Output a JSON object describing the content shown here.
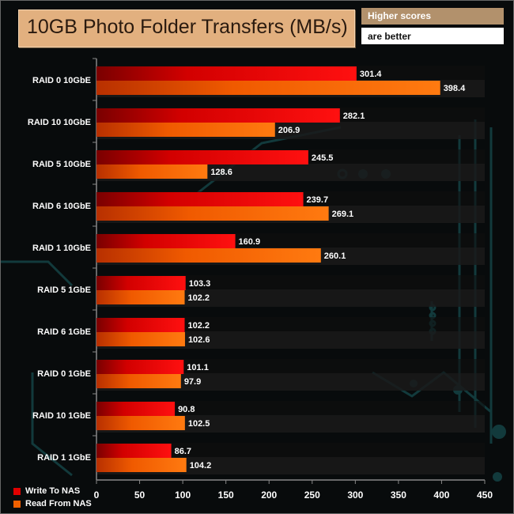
{
  "badge": {
    "line1": "Higher scores",
    "line2": "are better"
  },
  "colors": {
    "write": "#e00000",
    "read": "#f06000",
    "title_bg": "#e2b07f"
  },
  "chart_data": {
    "type": "bar",
    "orientation": "horizontal",
    "title": "10GB Photo Folder Transfers (MB/s)",
    "categories": [
      "RAID 0 10GbE",
      "RAID 10 10GbE",
      "RAID 5 10GbE",
      "RAID 6 10GbE",
      "RAID 1 10GbE",
      "RAID 5 1GbE",
      "RAID 6 1GbE",
      "RAID 0 1GbE",
      "RAID 10 1GbE",
      "RAID 1 1GbE"
    ],
    "series": [
      {
        "name": "Write To NAS",
        "values": [
          301.4,
          282.1,
          245.5,
          239.7,
          160.9,
          103.3,
          102.2,
          101.1,
          90.8,
          86.7
        ]
      },
      {
        "name": "Read From NAS",
        "values": [
          398.4,
          206.9,
          128.6,
          269.1,
          260.1,
          102.2,
          102.6,
          97.9,
          102.5,
          104.2
        ]
      }
    ],
    "xlim": [
      0,
      450
    ],
    "xticks": [
      0,
      50,
      100,
      150,
      200,
      250,
      300,
      350,
      400,
      450
    ],
    "grid": false,
    "legend": "bottom-left"
  }
}
